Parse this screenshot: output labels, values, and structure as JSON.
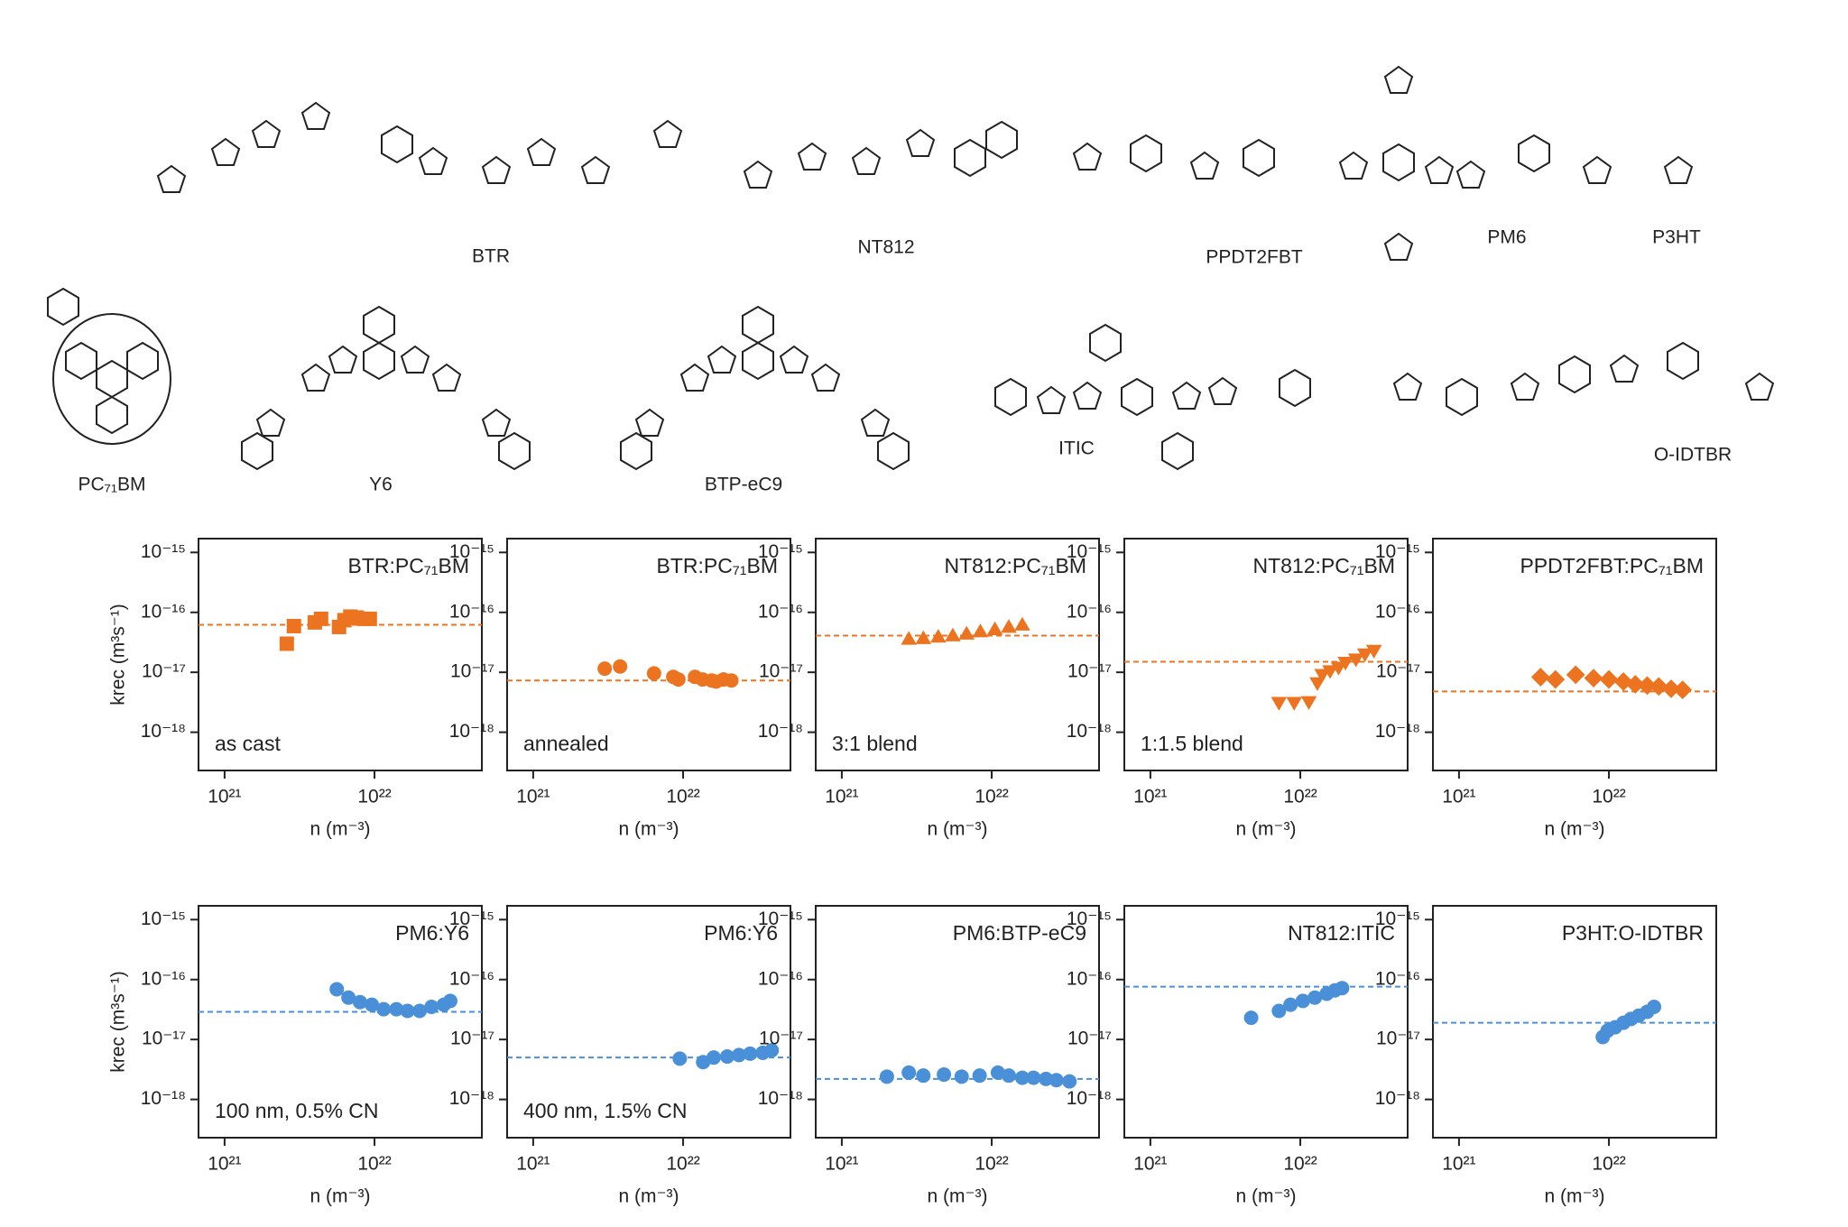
{
  "molecules": [
    {
      "label": "BTR"
    },
    {
      "label": "NT812"
    },
    {
      "label": "PPDT2FBT"
    },
    {
      "label": "PM6"
    },
    {
      "label": "P3HT"
    },
    {
      "label": "PC₇₁BM"
    },
    {
      "label": "Y6"
    },
    {
      "label": "BTP-eC9"
    },
    {
      "label": "ITIC"
    },
    {
      "label": "O-IDTBR"
    }
  ],
  "chart_data": [
    {
      "type": "scatter",
      "title": "BTR:PC₇₁BM",
      "annotation": "as cast",
      "ylabel": "krec (m³s⁻¹)",
      "xlabel": "n (m⁻³)",
      "marker": "square",
      "color": "#ec7420",
      "x": [
        2.6e+21,
        2.9e+21,
        4e+21,
        4.4e+21,
        5.8e+21,
        6.3e+21,
        6.9e+21,
        7.6e+21,
        8.5e+21,
        9.3e+21
      ],
      "values": [
        3e-17,
        5.9e-17,
        6.8e-17,
        7.8e-17,
        5.7e-17,
        7.4e-17,
        8.5e-17,
        8.2e-17,
        7.8e-17,
        7.8e-17
      ],
      "reference_line": 6.2e-17,
      "xscale": "log",
      "yscale": "log",
      "xlim": [
        6.7e+20,
        5.2e+22
      ],
      "ylim": [
        2.3e-19,
        1.7e-15
      ],
      "xticks": [
        {
          "value": 1e+21,
          "label": "10²¹"
        },
        {
          "value": 1e+22,
          "label": "10²²"
        }
      ],
      "yticks": [
        {
          "value": 1e-15,
          "label": "10⁻¹⁵"
        },
        {
          "value": 1e-16,
          "label": "10⁻¹⁶"
        },
        {
          "value": 1e-17,
          "label": "10⁻¹⁷"
        },
        {
          "value": 1e-18,
          "label": "10⁻¹⁸"
        }
      ]
    },
    {
      "type": "scatter",
      "title": "BTR:PC₇₁BM",
      "annotation": "annealed",
      "xlabel": "n (m⁻³)",
      "marker": "circle",
      "color": "#ec7420",
      "x": [
        3e+21,
        3.8e+21,
        6.4e+21,
        8.6e+21,
        9.3e+21,
        1.2e+22,
        1.35e+22,
        1.55e+22,
        1.66e+22,
        1.86e+22,
        2.1e+22
      ],
      "values": [
        1.15e-17,
        1.25e-17,
        9.6e-18,
        8.4e-18,
        7.6e-18,
        8.4e-18,
        7.6e-18,
        7.3e-18,
        7e-18,
        7.6e-18,
        7.3e-18
      ],
      "reference_line": 7.3e-18,
      "xscale": "log",
      "yscale": "log",
      "xlim": [
        6.7e+20,
        5.2e+22
      ],
      "ylim": [
        2.3e-19,
        1.7e-15
      ],
      "xticks": [
        {
          "value": 1e+21,
          "label": "10²¹"
        },
        {
          "value": 1e+22,
          "label": "10²²"
        }
      ],
      "yticks": [
        {
          "value": 1e-15,
          "label": "10⁻¹⁵"
        },
        {
          "value": 1e-16,
          "label": "10⁻¹⁶"
        },
        {
          "value": 1e-17,
          "label": "10⁻¹⁷"
        },
        {
          "value": 1e-18,
          "label": "10⁻¹⁸"
        }
      ]
    },
    {
      "type": "scatter",
      "title": "NT812:PC₇₁BM",
      "annotation": "3:1 blend",
      "xlabel": "n (m⁻³)",
      "marker": "triangle-up",
      "color": "#ec7420",
      "x": [
        2.8e+21,
        3.5e+21,
        4.4e+21,
        5.5e+21,
        6.8e+21,
        8.4e+21,
        1.05e+22,
        1.3e+22,
        1.6e+22
      ],
      "values": [
        3.6e-17,
        3.7e-17,
        3.9e-17,
        4.1e-17,
        4.4e-17,
        4.8e-17,
        5.2e-17,
        5.7e-17,
        6.2e-17
      ],
      "reference_line": 4.1e-17,
      "xscale": "log",
      "yscale": "log",
      "xlim": [
        6.7e+20,
        5.2e+22
      ],
      "ylim": [
        2.3e-19,
        1.7e-15
      ],
      "xticks": [
        {
          "value": 1e+21,
          "label": "10²¹"
        },
        {
          "value": 1e+22,
          "label": "10²²"
        }
      ],
      "yticks": [
        {
          "value": 1e-15,
          "label": "10⁻¹⁵"
        },
        {
          "value": 1e-16,
          "label": "10⁻¹⁶"
        },
        {
          "value": 1e-17,
          "label": "10⁻¹⁷"
        },
        {
          "value": 1e-18,
          "label": "10⁻¹⁸"
        }
      ]
    },
    {
      "type": "scatter",
      "title": "NT812:PC₇₁BM",
      "annotation": "1:1.5 blend",
      "xlabel": "n (m⁻³)",
      "marker": "triangle-down",
      "color": "#ec7420",
      "x": [
        7.2e+21,
        9.1e+21,
        1.14e+22,
        1.3e+22,
        1.4e+22,
        1.58e+22,
        1.8e+22,
        2e+22,
        2.35e+22,
        2.7e+22,
        3.1e+22
      ],
      "values": [
        3.1e-18,
        3.1e-18,
        3.2e-18,
        6.6e-18,
        9.1e-18,
        1.05e-17,
        1.2e-17,
        1.45e-17,
        1.65e-17,
        2e-17,
        2.3e-17
      ],
      "reference_line": 1.5e-17,
      "xscale": "log",
      "yscale": "log",
      "xlim": [
        6.7e+20,
        5.2e+22
      ],
      "ylim": [
        2.3e-19,
        1.7e-15
      ],
      "xticks": [
        {
          "value": 1e+21,
          "label": "10²¹"
        },
        {
          "value": 1e+22,
          "label": "10²²"
        }
      ],
      "yticks": [
        {
          "value": 1e-15,
          "label": "10⁻¹⁵"
        },
        {
          "value": 1e-16,
          "label": "10⁻¹⁶"
        },
        {
          "value": 1e-17,
          "label": "10⁻¹⁷"
        },
        {
          "value": 1e-18,
          "label": "10⁻¹⁸"
        }
      ]
    },
    {
      "type": "scatter",
      "title": "PPDT2FBT:PC₇₁BM",
      "xlabel": "n (m⁻³)",
      "marker": "diamond",
      "color": "#ec7420",
      "x": [
        3.5e+21,
        4.4e+21,
        6e+21,
        7.9e+21,
        1e+22,
        1.25e+22,
        1.5e+22,
        1.8e+22,
        2.15e+22,
        2.6e+22,
        3.1e+22
      ],
      "values": [
        8.3e-18,
        7.6e-18,
        9.1e-18,
        8e-18,
        7.6e-18,
        7e-18,
        6.3e-18,
        6e-18,
        5.8e-18,
        5.3e-18,
        5.1e-18
      ],
      "reference_line": 4.8e-18,
      "xscale": "log",
      "yscale": "log",
      "xlim": [
        6.7e+20,
        5.2e+22
      ],
      "ylim": [
        2.3e-19,
        1.7e-15
      ],
      "xticks": [
        {
          "value": 1e+21,
          "label": "10²¹"
        },
        {
          "value": 1e+22,
          "label": "10²²"
        }
      ],
      "yticks": [
        {
          "value": 1e-15,
          "label": "10⁻¹⁵"
        },
        {
          "value": 1e-16,
          "label": "10⁻¹⁶"
        },
        {
          "value": 1e-17,
          "label": "10⁻¹⁷"
        },
        {
          "value": 1e-18,
          "label": "10⁻¹⁸"
        }
      ]
    },
    {
      "type": "scatter",
      "title": "PM6:Y6",
      "annotation": "100 nm, 0.5% CN",
      "ylabel": "krec (m³s⁻¹)",
      "xlabel": "n (m⁻³)",
      "marker": "circle",
      "color": "#4a90d9",
      "x": [
        5.6e+21,
        6.7e+21,
        8e+21,
        9.6e+21,
        1.15e+22,
        1.4e+22,
        1.66e+22,
        2e+22,
        2.4e+22,
        2.9e+22,
        3.2e+22
      ],
      "values": [
        6.9e-17,
        5e-17,
        4.2e-17,
        3.8e-17,
        3.2e-17,
        3.2e-17,
        3e-17,
        3e-17,
        3.5e-17,
        3.8e-17,
        4.4e-17
      ],
      "reference_line": 2.9e-17,
      "xscale": "log",
      "yscale": "log",
      "xlim": [
        6.7e+20,
        5.2e+22
      ],
      "ylim": [
        2.3e-19,
        1.7e-15
      ],
      "xticks": [
        {
          "value": 1e+21,
          "label": "10²¹"
        },
        {
          "value": 1e+22,
          "label": "10²²"
        }
      ],
      "yticks": [
        {
          "value": 1e-15,
          "label": "10⁻¹⁵"
        },
        {
          "value": 1e-16,
          "label": "10⁻¹⁶"
        },
        {
          "value": 1e-17,
          "label": "10⁻¹⁷"
        },
        {
          "value": 1e-18,
          "label": "10⁻¹⁸"
        }
      ]
    },
    {
      "type": "scatter",
      "title": "PM6:Y6",
      "annotation": "400 nm, 1.5% CN",
      "xlabel": "n (m⁻³)",
      "marker": "circle",
      "color": "#4a90d9",
      "x": [
        9.5e+21,
        1.36e+22,
        1.6e+22,
        1.97e+22,
        2.36e+22,
        2.8e+22,
        3.4e+22,
        3.9e+22
      ],
      "values": [
        4.8e-18,
        4.2e-18,
        5e-18,
        5.2e-18,
        5.5e-18,
        5.8e-18,
        6e-18,
        6.6e-18
      ],
      "reference_line": 5e-18,
      "xscale": "log",
      "yscale": "log",
      "xlim": [
        6.7e+20,
        5.2e+22
      ],
      "ylim": [
        2.3e-19,
        1.7e-15
      ],
      "xticks": [
        {
          "value": 1e+21,
          "label": "10²¹"
        },
        {
          "value": 1e+22,
          "label": "10²²"
        }
      ],
      "yticks": [
        {
          "value": 1e-15,
          "label": "10⁻¹⁵"
        },
        {
          "value": 1e-16,
          "label": "10⁻¹⁶"
        },
        {
          "value": 1e-17,
          "label": "10⁻¹⁷"
        },
        {
          "value": 1e-18,
          "label": "10⁻¹⁸"
        }
      ]
    },
    {
      "type": "scatter",
      "title": "PM6:BTP-eC9",
      "xlabel": "n (m⁻³)",
      "marker": "circle",
      "color": "#4a90d9",
      "x": [
        2e+21,
        2.8e+21,
        3.5e+21,
        4.8e+21,
        6.3e+21,
        8.3e+21,
        1.1e+22,
        1.3e+22,
        1.6e+22,
        1.9e+22,
        2.3e+22,
        2.7e+22,
        3.3e+22
      ],
      "values": [
        2.4e-18,
        2.8e-18,
        2.5e-18,
        2.6e-18,
        2.4e-18,
        2.5e-18,
        2.8e-18,
        2.5e-18,
        2.3e-18,
        2.3e-18,
        2.2e-18,
        2.1e-18,
        2e-18
      ],
      "reference_line": 2.2e-18,
      "xscale": "log",
      "yscale": "log",
      "xlim": [
        6.7e+20,
        5.2e+22
      ],
      "ylim": [
        2.3e-19,
        1.7e-15
      ],
      "xticks": [
        {
          "value": 1e+21,
          "label": "10²¹"
        },
        {
          "value": 1e+22,
          "label": "10²²"
        }
      ],
      "yticks": [
        {
          "value": 1e-15,
          "label": "10⁻¹⁵"
        },
        {
          "value": 1e-16,
          "label": "10⁻¹⁶"
        },
        {
          "value": 1e-17,
          "label": "10⁻¹⁷"
        },
        {
          "value": 1e-18,
          "label": "10⁻¹⁸"
        }
      ]
    },
    {
      "type": "scatter",
      "title": "NT812:ITIC",
      "xlabel": "n (m⁻³)",
      "marker": "circle",
      "color": "#4a90d9",
      "x": [
        4.7e+21,
        7.2e+21,
        8.6e+21,
        1.04e+22,
        1.25e+22,
        1.5e+22,
        1.7e+22,
        1.9e+22
      ],
      "values": [
        2.3e-17,
        3e-17,
        3.8e-17,
        4.4e-17,
        5e-17,
        5.8e-17,
        6.6e-17,
        7.2e-17
      ],
      "reference_line": 7.6e-17,
      "xscale": "log",
      "yscale": "log",
      "xlim": [
        6.7e+20,
        5.2e+22
      ],
      "ylim": [
        2.3e-19,
        1.7e-15
      ],
      "xticks": [
        {
          "value": 1e+21,
          "label": "10²¹"
        },
        {
          "value": 1e+22,
          "label": "10²²"
        }
      ],
      "yticks": [
        {
          "value": 1e-15,
          "label": "10⁻¹⁵"
        },
        {
          "value": 1e-16,
          "label": "10⁻¹⁶"
        },
        {
          "value": 1e-17,
          "label": "10⁻¹⁷"
        },
        {
          "value": 1e-18,
          "label": "10⁻¹⁸"
        }
      ]
    },
    {
      "type": "scatter",
      "title": "P3HT:O-IDTBR",
      "xlabel": "n (m⁻³)",
      "marker": "circle",
      "color": "#4a90d9",
      "x": [
        9.1e+21,
        9.8e+21,
        1.1e+22,
        1.25e+22,
        1.4e+22,
        1.58e+22,
        1.8e+22,
        2e+22
      ],
      "values": [
        1.1e-17,
        1.4e-17,
        1.6e-17,
        1.9e-17,
        2.2e-17,
        2.5e-17,
        2.9e-17,
        3.5e-17
      ],
      "reference_line": 1.9e-17,
      "xscale": "log",
      "yscale": "log",
      "xlim": [
        6.7e+20,
        5.2e+22
      ],
      "ylim": [
        2.3e-19,
        1.7e-15
      ],
      "xticks": [
        {
          "value": 1e+21,
          "label": "10²¹"
        },
        {
          "value": 1e+22,
          "label": "10²²"
        }
      ],
      "yticks": [
        {
          "value": 1e-15,
          "label": "10⁻¹⁵"
        },
        {
          "value": 1e-16,
          "label": "10⁻¹⁶"
        },
        {
          "value": 1e-17,
          "label": "10⁻¹⁷"
        },
        {
          "value": 1e-18,
          "label": "10⁻¹⁸"
        }
      ]
    }
  ]
}
